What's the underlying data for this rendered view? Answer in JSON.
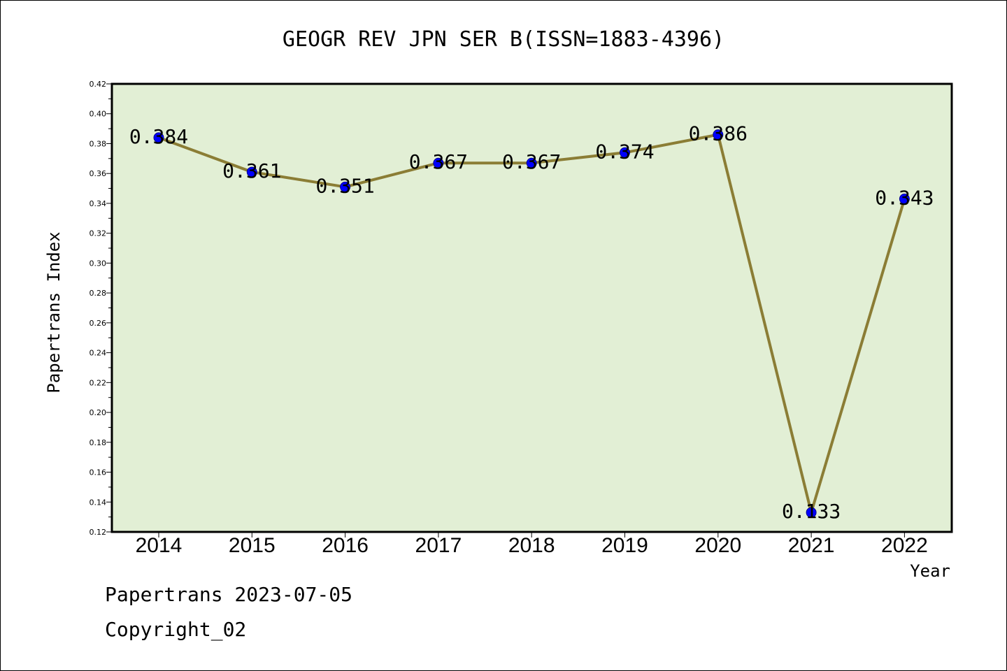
{
  "chart_data": {
    "type": "line",
    "title": "GEOGR REV JPN SER B(ISSN=1883-4396)",
    "xlabel": "Year",
    "ylabel": "Papertrans Index",
    "categories": [
      "2014",
      "2015",
      "2016",
      "2017",
      "2018",
      "2019",
      "2020",
      "2021",
      "2022"
    ],
    "series": [
      {
        "values": [
          0.384,
          0.361,
          0.351,
          0.367,
          0.367,
          0.374,
          0.386,
          0.133,
          0.343
        ]
      }
    ],
    "data_labels": [
      "0.384",
      "0.361",
      "0.351",
      "0.367",
      "0.367",
      "0.374",
      "0.386",
      "0.133",
      "0.343"
    ],
    "ylim": [
      0.12,
      0.42
    ],
    "yticks": [
      "0.12",
      "0.14",
      "0.16",
      "0.18",
      "0.20",
      "0.22",
      "0.24",
      "0.26",
      "0.28",
      "0.30",
      "0.32",
      "0.34",
      "0.36",
      "0.38",
      "0.40",
      "0.42"
    ],
    "grid": false,
    "colors": {
      "plot_background": "#e2efd5",
      "line": "#8b7d35",
      "marker": "#0000ff"
    }
  },
  "footer": {
    "line1": "Papertrans 2023-07-05",
    "line2": "Copyright_02"
  }
}
